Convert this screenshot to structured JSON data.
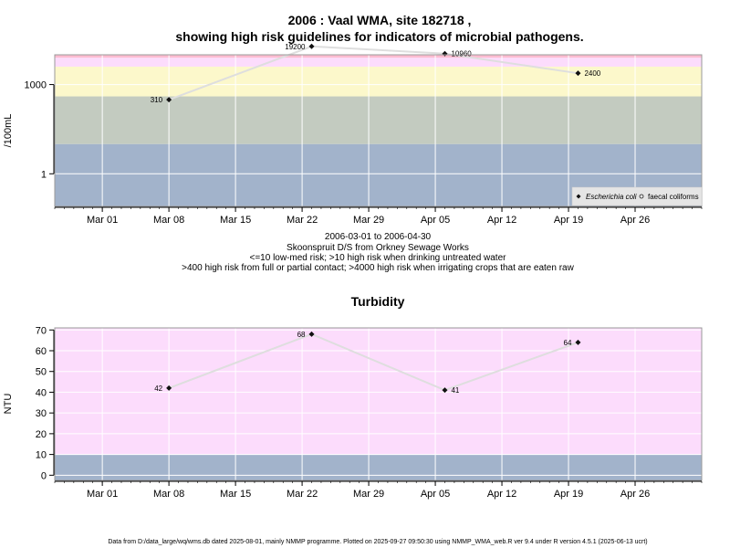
{
  "chart_data": [
    {
      "type": "line",
      "title": "2006 : Vaal WMA, site 182718 ,",
      "subtitle": "showing high risk guidelines for indicators of microbial pathogens.",
      "ylabel": "/100mL",
      "yscale": "log",
      "ylim": [
        0.08,
        10000
      ],
      "yticks": [
        1,
        1000
      ],
      "ytick_labels": [
        "1",
        "1000"
      ],
      "xlim": [
        "2006-02-24",
        "2006-05-03"
      ],
      "xticks": [
        "2006-03-01",
        "2006-03-08",
        "2006-03-15",
        "2006-03-22",
        "2006-03-29",
        "2006-04-05",
        "2006-04-12",
        "2006-04-19",
        "2006-04-26"
      ],
      "xtick_labels": [
        "Mar 01",
        "Mar 08",
        "Mar 15",
        "Mar 22",
        "Mar 29",
        "Apr 05",
        "Apr 12",
        "Apr 19",
        "Apr 26"
      ],
      "grid": true,
      "bands": [
        {
          "from": 0.08,
          "to": 10,
          "color": "#a2b3cb"
        },
        {
          "from": 10,
          "to": 400,
          "color": "#c3cbc0"
        },
        {
          "from": 400,
          "to": 4000,
          "color": "#fcf8cb"
        },
        {
          "from": 4000,
          "to": 8000,
          "color": "#fcdcfc"
        },
        {
          "from": 8000,
          "to": 10000,
          "color": "#fcbcd0"
        }
      ],
      "series": [
        {
          "name": "Escherichia coli",
          "x": [
            "2006-03-08",
            "2006-03-23",
            "2006-04-06",
            "2006-04-20"
          ],
          "y": [
            310,
            19200,
            10960,
            2400
          ],
          "labels": [
            "310",
            "19200",
            "10960",
            "2400"
          ]
        }
      ],
      "legend": {
        "position": "bottom-right",
        "items": [
          "Escherichia coli",
          "faecal coliforms"
        ]
      },
      "caption_lines": [
        "2006-03-01 to 2006-04-30",
        "Skoonspruit D/S from Orkney Sewage Works",
        "<=10 low-med risk; >10 high risk when drinking untreated water",
        ">400 high risk from full or partial contact; >4000 high risk when irrigating crops that are eaten raw"
      ]
    },
    {
      "type": "line",
      "title": "Turbidity",
      "ylabel": "NTU",
      "ylim": [
        -2.5,
        71
      ],
      "yticks": [
        0,
        10,
        20,
        30,
        40,
        50,
        60,
        70
      ],
      "ytick_labels": [
        "0",
        "10",
        "20",
        "30",
        "40",
        "50",
        "60",
        "70"
      ],
      "xlim": [
        "2006-02-24",
        "2006-05-03"
      ],
      "xticks": [
        "2006-03-01",
        "2006-03-08",
        "2006-03-15",
        "2006-03-22",
        "2006-03-29",
        "2006-04-05",
        "2006-04-12",
        "2006-04-19",
        "2006-04-26"
      ],
      "xtick_labels": [
        "Mar 01",
        "Mar 08",
        "Mar 15",
        "Mar 22",
        "Mar 29",
        "Apr 05",
        "Apr 12",
        "Apr 19",
        "Apr 26"
      ],
      "grid": true,
      "bands": [
        {
          "from": -2.5,
          "to": 10,
          "color": "#a2b3cb"
        },
        {
          "from": 10,
          "to": 71,
          "color": "#fcdcfc"
        }
      ],
      "series": [
        {
          "x": [
            "2006-03-08",
            "2006-03-23",
            "2006-04-06",
            "2006-04-20"
          ],
          "y": [
            42,
            68,
            41,
            64
          ],
          "labels": [
            "42",
            "68",
            "41",
            "64"
          ]
        }
      ]
    }
  ],
  "footer": "Data from D:/data_large/wq/wms.db dated 2025-08-01, mainly NMMP programme. Plotted on 2025-09-27 09:50:30 using NMMP_WMA_web.R ver 9.4 under R version 4.5.1 (2025-06-13 ucrt)"
}
